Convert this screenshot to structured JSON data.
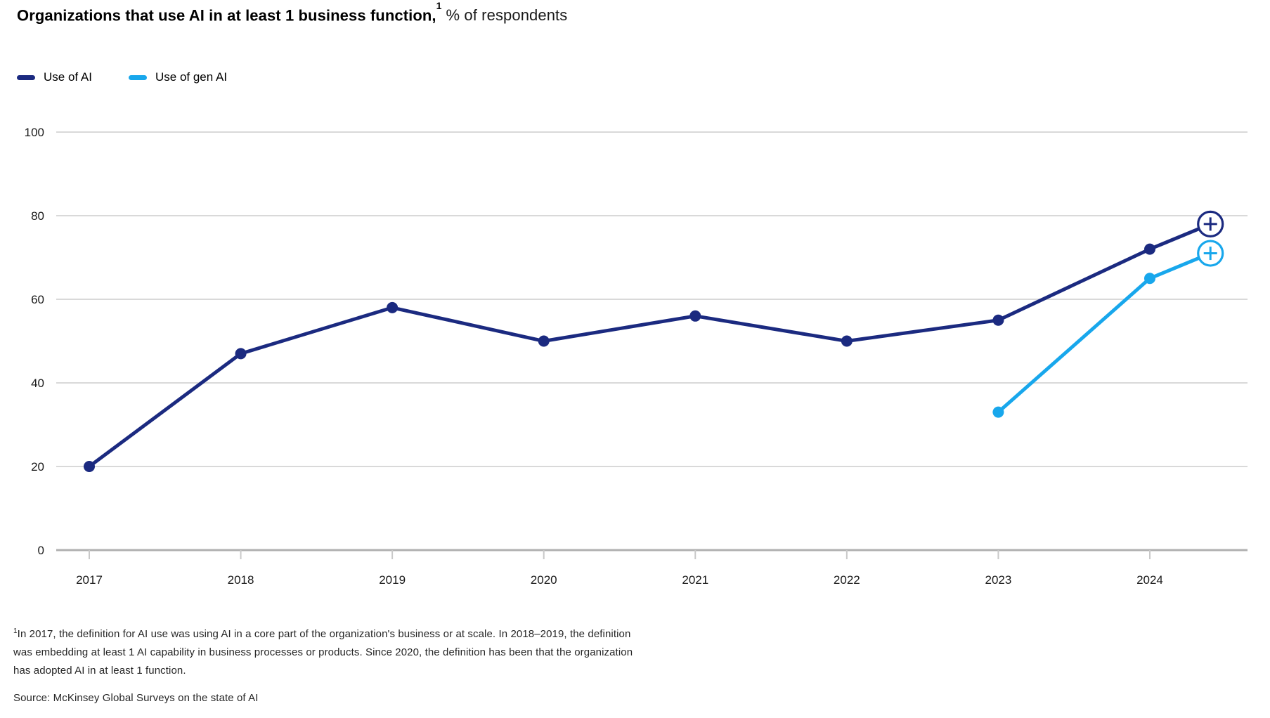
{
  "header": {
    "title_bold": "Organizations that use AI in at least 1 business function,",
    "title_note_marker": "1",
    "title_suffix": "% of respondents"
  },
  "chart_data": {
    "type": "line",
    "title": "Organizations that use AI in at least 1 business function, % of respondents",
    "x_ticks": [
      "2017",
      "2018",
      "2019",
      "2020",
      "2021",
      "2022",
      "2023",
      "2024"
    ],
    "y_ticks": [
      0,
      20,
      40,
      60,
      80,
      100
    ],
    "ylim": [
      0,
      100
    ],
    "grid": "horizontal-only",
    "legend_position": "top-left",
    "series": [
      {
        "name": "Use of AI",
        "color": "#1B2A80",
        "points": [
          {
            "x": 2017,
            "y": 20
          },
          {
            "x": 2018,
            "y": 47
          },
          {
            "x": 2019,
            "y": 58
          },
          {
            "x": 2020,
            "y": 50
          },
          {
            "x": 2021,
            "y": 56
          },
          {
            "x": 2022,
            "y": 50
          },
          {
            "x": 2023,
            "y": 55
          },
          {
            "x": 2024,
            "y": 72
          },
          {
            "x": 2024.4,
            "y": 78,
            "marker": "plus-circle"
          }
        ]
      },
      {
        "name": "Use of gen AI",
        "color": "#18A7EC",
        "points": [
          {
            "x": 2023,
            "y": 33
          },
          {
            "x": 2024,
            "y": 65
          },
          {
            "x": 2024.4,
            "y": 71,
            "marker": "plus-circle"
          }
        ]
      }
    ]
  },
  "colors": {
    "grid_line": "#D9D9D9",
    "axis_line": "#B0B0B0",
    "axis_tick": "#C9C9C9",
    "tick_label": "#1A1A1A"
  },
  "footnote": {
    "superscript": "1",
    "line1": "In 2017, the definition for AI use was using AI in a core part of the organization's business or at scale. In 2018–2019, the definition",
    "line2": "was embedding at least 1 AI capability in business processes or products. Since 2020, the definition has been that the organization",
    "line3": "has adopted AI in at least 1 function."
  },
  "source": {
    "text": "Source: McKinsey Global Surveys on the state of AI"
  }
}
